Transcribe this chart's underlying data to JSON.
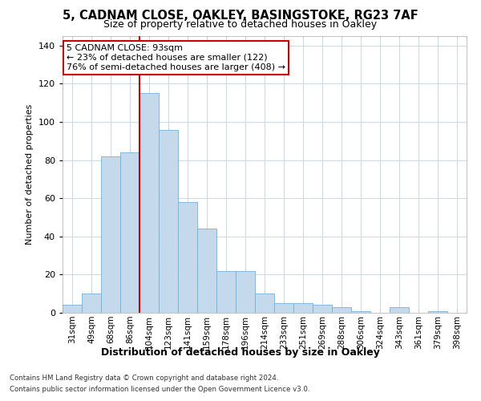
{
  "title1": "5, CADNAM CLOSE, OAKLEY, BASINGSTOKE, RG23 7AF",
  "title2": "Size of property relative to detached houses in Oakley",
  "xlabel": "Distribution of detached houses by size in Oakley",
  "ylabel": "Number of detached properties",
  "categories": [
    "31sqm",
    "49sqm",
    "68sqm",
    "86sqm",
    "104sqm",
    "123sqm",
    "141sqm",
    "159sqm",
    "178sqm",
    "196sqm",
    "214sqm",
    "233sqm",
    "251sqm",
    "269sqm",
    "288sqm",
    "306sqm",
    "324sqm",
    "343sqm",
    "361sqm",
    "379sqm",
    "398sqm"
  ],
  "values": [
    4,
    10,
    82,
    84,
    115,
    96,
    58,
    44,
    22,
    22,
    10,
    5,
    5,
    4,
    3,
    1,
    0,
    3,
    0,
    1,
    0
  ],
  "bar_color": "#c5d9ec",
  "bar_edge_color": "#7aafd4",
  "vline_x": 3.5,
  "vline_color": "#cc0000",
  "annotation_text": "5 CADNAM CLOSE: 93sqm\n← 23% of detached houses are smaller (122)\n76% of semi-detached houses are larger (408) →",
  "annotation_box_color": "#ffffff",
  "annotation_box_edge": "#cc0000",
  "ylim": [
    0,
    145
  ],
  "yticks": [
    0,
    20,
    40,
    60,
    80,
    100,
    120,
    140
  ],
  "footnote1": "Contains HM Land Registry data © Crown copyright and database right 2024.",
  "footnote2": "Contains public sector information licensed under the Open Government Licence v3.0.",
  "bg_color": "#ffffff",
  "plot_bg_color": "#ffffff",
  "grid_color": "#c8d8e8"
}
